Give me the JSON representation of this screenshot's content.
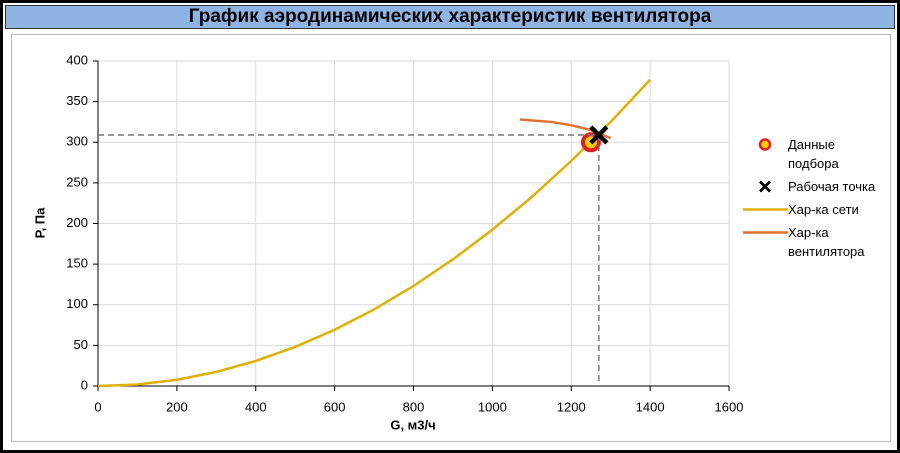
{
  "chart_data": {
    "type": "line",
    "title": "График аэродинамических характеристик вентилятора",
    "x_label": "G, м3/ч",
    "y_label": "P, Па",
    "xlim": [
      0,
      1600
    ],
    "xticks": [
      0,
      200,
      400,
      600,
      800,
      1000,
      1200,
      1400,
      1600
    ],
    "ylim": [
      0,
      400
    ],
    "yticks": [
      0,
      50,
      100,
      150,
      200,
      250,
      300,
      350,
      400
    ],
    "grid": true,
    "series": [
      {
        "name": "Данные подбора",
        "color": "#e02020",
        "marker": "circle",
        "x": [
          1250
        ],
        "values": [
          300
        ]
      },
      {
        "name": "Рабочая точка",
        "color": "#000000",
        "marker": "x",
        "guides": true,
        "x": [
          1270
        ],
        "values": [
          309
        ]
      },
      {
        "name": "Хар-ка сети",
        "color": "#e0b000",
        "x": [
          0,
          100,
          200,
          300,
          400,
          500,
          600,
          700,
          800,
          900,
          1000,
          1100,
          1200,
          1300,
          1400
        ],
        "values": [
          0,
          1.9,
          7.7,
          17.3,
          30.8,
          48.1,
          69.2,
          94.2,
          123.1,
          155.8,
          192.3,
          232.7,
          276.9,
          325,
          376.9
        ]
      },
      {
        "name": "Хар-ка вентилятора",
        "color": "#e07030",
        "x": [
          1070,
          1150,
          1200,
          1250,
          1300
        ],
        "values": [
          328,
          325,
          321,
          315,
          305
        ]
      }
    ]
  }
}
